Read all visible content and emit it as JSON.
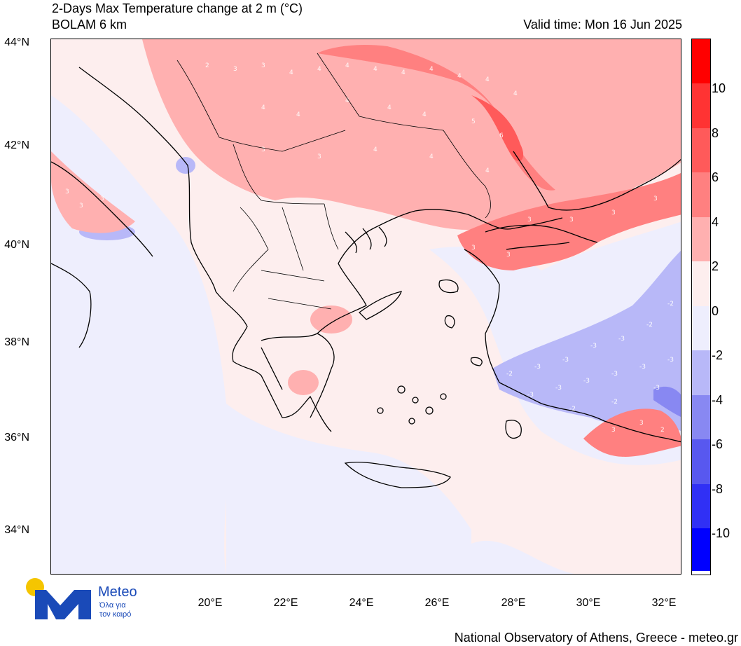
{
  "header": {
    "title_line1": "2-Days Max Temperature change at 2 m (°C)",
    "title_line2": "BOLAM 6 km",
    "valid_time": "Valid time: Mon 16 Jun 2025"
  },
  "map": {
    "lat_labels": [
      "44°N",
      "42°N",
      "40°N",
      "38°N",
      "36°N",
      "34°N"
    ],
    "lon_labels": [
      "20°E",
      "22°E",
      "24°E",
      "26°E",
      "28°E",
      "30°E",
      "32°E"
    ],
    "region": "Greece / Balkans / Western Turkey",
    "contour_labels": [
      "4",
      "3",
      "2",
      "-2",
      "-3",
      "5",
      "6"
    ]
  },
  "colorbar": {
    "labels": [
      "10",
      "8",
      "6",
      "4",
      "2",
      "0",
      "-2",
      "-4",
      "-6",
      "-8",
      "-10"
    ],
    "colors": [
      "#ff0000",
      "#ff3333",
      "#ff5a5a",
      "#ff8080",
      "#ffb0b0",
      "#fdeeee",
      "#eeeefd",
      "#b8b8f8",
      "#8888f2",
      "#5858ef",
      "#3030f5",
      "#0000ff"
    ]
  },
  "logo": {
    "name": "Meteo",
    "tagline_line1": "Όλα για",
    "tagline_line2": "τον καιρό"
  },
  "footer": {
    "credit": "National Observatory of Athens, Greece - meteo.gr"
  }
}
